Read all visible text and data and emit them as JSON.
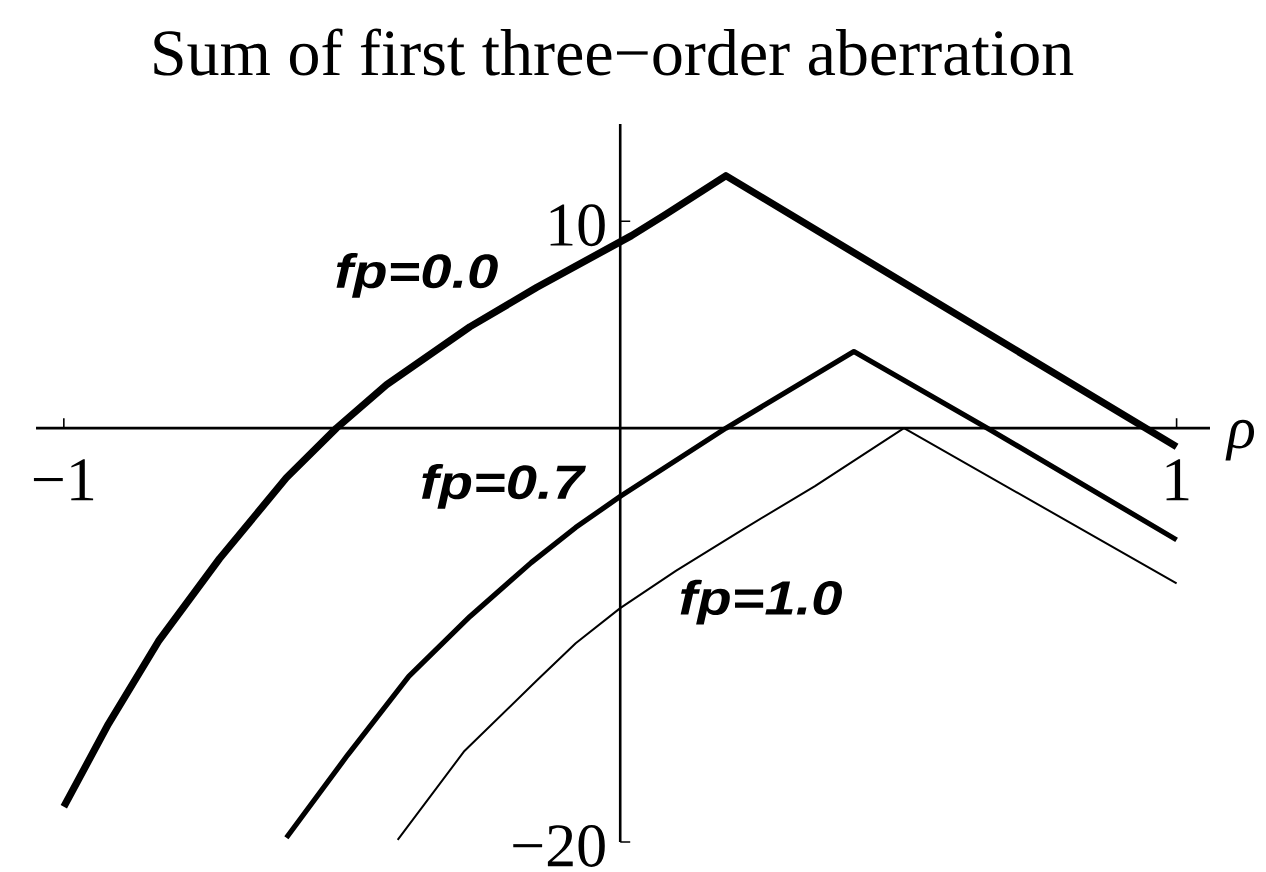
{
  "chart_data": {
    "type": "line",
    "title": "Sum of first three−order aberration",
    "xlabel": "ρ",
    "xlim": [
      -1.05,
      1.06
    ],
    "ylim": [
      -20,
      14.7
    ],
    "xticks": [
      {
        "value": -1,
        "label": "−1"
      },
      1
    ],
    "yticks": [
      10,
      {
        "value": -20,
        "label": "−20"
      }
    ],
    "marker": "none",
    "series": [
      {
        "name": "fp=0.0",
        "color": "#000000",
        "x": [
          -1.0,
          -0.92,
          -0.83,
          -0.72,
          -0.6,
          -0.51,
          -0.42,
          -0.27,
          -0.15,
          0.02,
          0.08,
          0.19,
          1.0
        ],
        "values": [
          -18.3,
          -14.3,
          -10.3,
          -6.3,
          -2.4,
          0,
          2.1,
          4.9,
          6.8,
          9.3,
          10.3,
          12.2,
          -0.9
        ]
      },
      {
        "name": "fp=0.7",
        "color": "#000000",
        "x": [
          -0.6,
          -0.49,
          -0.38,
          -0.27,
          -0.16,
          -0.08,
          0.0,
          0.19,
          0.42,
          0.66,
          1.0
        ],
        "values": [
          -19.8,
          -15.8,
          -12.0,
          -9.1,
          -6.5,
          -4.8,
          -3.3,
          0,
          3.7,
          0,
          -5.4
        ]
      },
      {
        "name": "fp=1.0",
        "color": "#000000",
        "x": [
          -0.4,
          -0.28,
          -0.15,
          -0.08,
          0.0,
          0.1,
          0.22,
          0.35,
          0.51,
          1.0
        ],
        "values": [
          -19.9,
          -15.6,
          -12.2,
          -10.4,
          -8.7,
          -6.9,
          -4.9,
          -2.8,
          0,
          -7.5
        ]
      }
    ]
  }
}
